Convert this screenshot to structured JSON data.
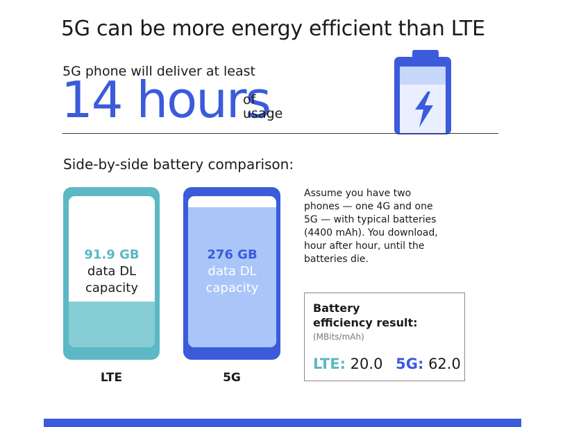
{
  "title": "5G can be more energy efficient than LTE",
  "headline": {
    "intro": "5G phone will deliver at least",
    "big_number": "14 hours",
    "suffix_line1": "of",
    "suffix_line2": "usage"
  },
  "comparison": {
    "heading": "Side-by-side battery comparison:",
    "lte": {
      "value": "91.9 GB",
      "desc_line1": "data DL",
      "desc_line2": "capacity",
      "label": "LTE",
      "color": "#5bb8c4"
    },
    "g5": {
      "value": "276 GB",
      "desc_line1": "data DL",
      "desc_line2": "capacity",
      "label": "5G",
      "color": "#3b5bdb"
    }
  },
  "assumption": {
    "lines": [
      "Assume you have two",
      "phones — one 4G and one",
      "5G — with typical batteries",
      "(4400 mAh). You download,",
      "hour after hour, until the",
      "batteries die."
    ]
  },
  "result": {
    "title_line1": "Battery",
    "title_line2": "efficiency result:",
    "unit": "(MBits/mAh)",
    "lte_label": "LTE:",
    "lte_value": "20.0",
    "g5_label": "5G:",
    "g5_value": "62.0"
  },
  "icons": {
    "battery": "battery-charging-icon"
  }
}
